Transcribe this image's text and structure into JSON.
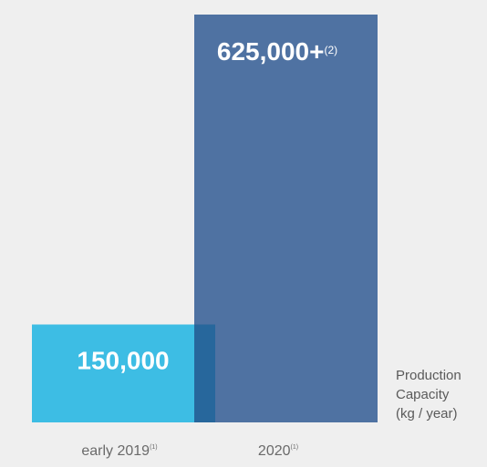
{
  "chart_data": {
    "type": "bar",
    "categories": [
      "early 2019",
      "2020"
    ],
    "category_footnotes": [
      "(1)",
      "(1)"
    ],
    "values": [
      150000,
      625000
    ],
    "value_labels": [
      "150,000",
      "625,000+"
    ],
    "value_label_footnotes": [
      "",
      "(2)"
    ],
    "ylabel_lines": [
      "Production",
      "Capacity",
      "(kg / year)"
    ],
    "ylim": [
      0,
      625000
    ],
    "overlapping_bars": true,
    "colors": {
      "background": "#efefef",
      "early_2019": "#3dbde4",
      "2020": "#4f72a2",
      "overlap": "#27679c",
      "category_text": "#6a6a6a",
      "ylabel_text": "#5a5a5a"
    }
  }
}
